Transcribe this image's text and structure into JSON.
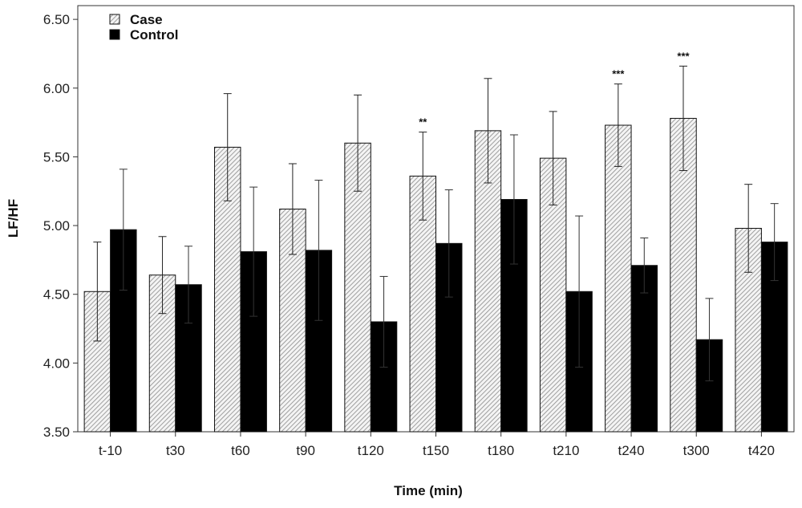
{
  "chart_data": {
    "type": "bar",
    "xlabel": "Time (min)",
    "ylabel": "LF/HF",
    "ylim": [
      3.5,
      6.6
    ],
    "yticks": [
      "3.50",
      "4.00",
      "4.50",
      "5.00",
      "5.50",
      "6.00",
      "6.50"
    ],
    "categories": [
      "t-10",
      "t30",
      "t60",
      "t90",
      "t120",
      "t150",
      "t180",
      "t210",
      "t240",
      "t300",
      "t420"
    ],
    "series": [
      {
        "name": "Case",
        "pattern": "hatched",
        "values": [
          4.52,
          4.64,
          5.57,
          5.12,
          5.6,
          5.36,
          5.69,
          5.49,
          5.73,
          5.78,
          4.98
        ],
        "errors": [
          0.36,
          0.28,
          0.39,
          0.33,
          0.35,
          0.32,
          0.38,
          0.34,
          0.3,
          0.38,
          0.32
        ]
      },
      {
        "name": "Control",
        "color": "#000000",
        "values": [
          4.97,
          4.57,
          4.81,
          4.82,
          4.3,
          4.87,
          5.19,
          4.52,
          4.71,
          4.17,
          4.88
        ],
        "errors": [
          0.44,
          0.28,
          0.47,
          0.51,
          0.33,
          0.39,
          0.47,
          0.55,
          0.2,
          0.3,
          0.28
        ]
      }
    ],
    "annotations": [
      {
        "category": "t150",
        "text": "**"
      },
      {
        "category": "t240",
        "text": "***"
      },
      {
        "category": "t300",
        "text": "***"
      }
    ],
    "legend": {
      "placement": "top-left",
      "entries": [
        "Case",
        "Control"
      ]
    },
    "grid": false
  }
}
